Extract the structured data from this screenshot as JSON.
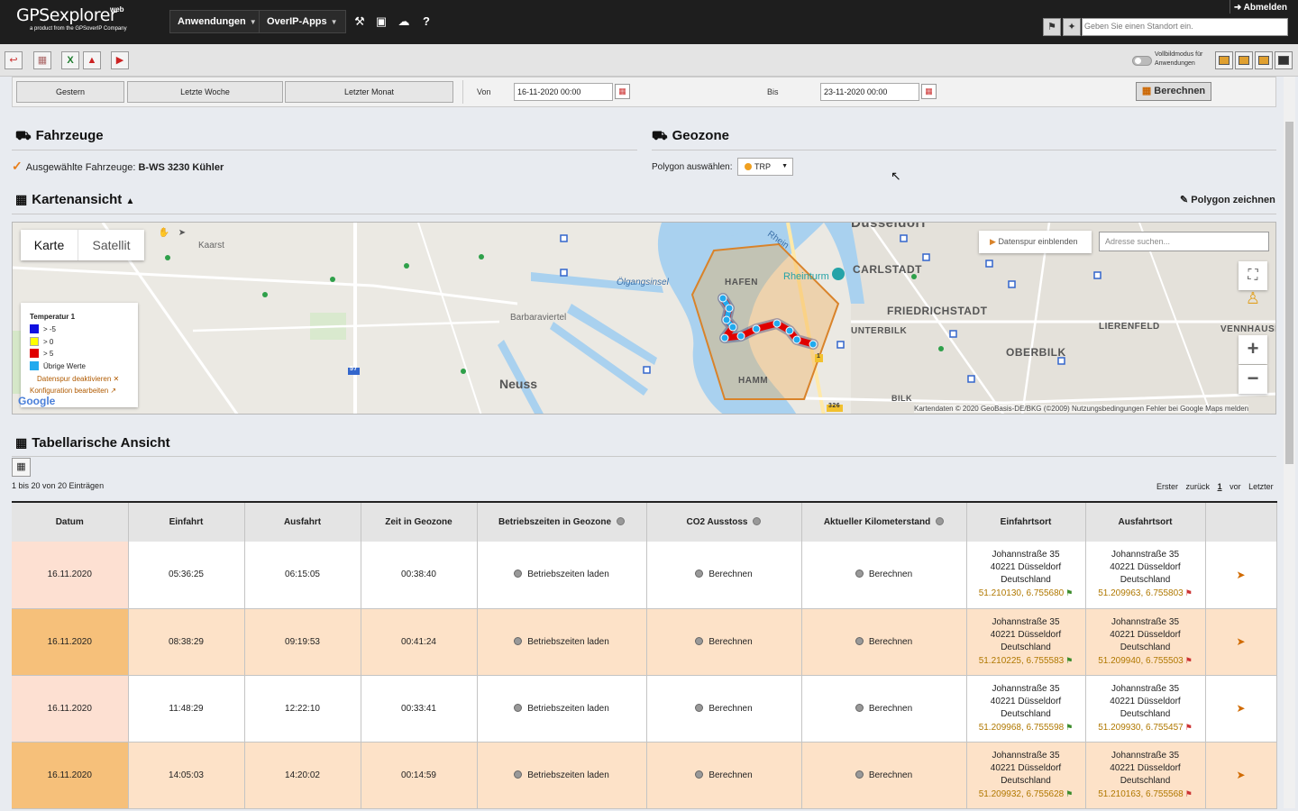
{
  "header": {
    "logo_main": "GPSexplorer",
    "logo_web": "web",
    "logo_sub": "a product from the GPSoverIP Company",
    "nav": [
      {
        "label": "Anwendungen"
      },
      {
        "label": "OverIP-Apps"
      }
    ],
    "logout": "Abmelden",
    "location_placeholder": "Geben Sie einen Standort ein."
  },
  "toolbar": {
    "fullscreen_label_1": "Vollbildmodus für",
    "fullscreen_label_2": "Anwendungen"
  },
  "datebar": {
    "quick": [
      "Gestern",
      "Letzte Woche",
      "Letzter Monat"
    ],
    "from_label": "Von",
    "from_value": "16-11-2020 00:00",
    "to_label": "Bis",
    "to_value": "23-11-2020 00:00",
    "calculate": "Berechnen"
  },
  "vehicles": {
    "title": "Fahrzeuge",
    "selected_label": "Ausgewählte Fahrzeuge:",
    "selected_value": "B-WS 3230 Kühler"
  },
  "geozone": {
    "title": "Geozone",
    "polygon_label": "Polygon auswählen:",
    "polygon_value": "TRP"
  },
  "mapsection": {
    "title": "Kartenansicht",
    "draw_polygon": "Polygon zeichnen",
    "type_map": "Karte",
    "type_sat": "Satellit",
    "track_button": "Datenspur einblenden",
    "address_placeholder": "Adresse suchen...",
    "attribution": "Kartendaten © 2020 GeoBasis-DE/BKG (©2009)    Nutzungsbedingungen    Fehler bei Google Maps melden",
    "google": "Google",
    "legend": {
      "title": "Temperatur 1",
      "items": [
        {
          "label": "> -5",
          "color": "#1010e0"
        },
        {
          "label": "> 0",
          "color": "#ffff00"
        },
        {
          "label": "> 5",
          "color": "#e00000"
        },
        {
          "label": "Übrige Werte",
          "color": "#22aaee"
        }
      ],
      "link_deactivate": "Datenspur deaktivieren",
      "link_config": "Konfiguration bearbeiten"
    },
    "places": {
      "kaarst": "Kaarst",
      "barbaraviertel": "Barbaraviertel",
      "neuss": "Neuss",
      "oelgangsinsel": "Ölgangsinsel",
      "hafen": "HAFEN",
      "hamm": "HAMM",
      "rheinturm": "Rheinturm",
      "carlstadt": "CARLSTADT",
      "friedrichstadt": "FRIEDRICHSTADT",
      "unterbilk": "UNTERBILK",
      "oberbilk": "OBERBILK",
      "lierenfeld": "LIERENFELD",
      "vennhausen": "VENNHAUSE",
      "bilk": "BILK",
      "duesseldorf": "Düsseldorf",
      "rhein": "Rhein",
      "road_57": "57",
      "road_326": "326",
      "road_1": "1"
    }
  },
  "tablesection": {
    "title": "Tabellarische Ansicht",
    "count": "1 bis 20 von 20 Einträgen",
    "pager": {
      "first": "Erster",
      "prev": "zurück",
      "page": "1",
      "next": "vor",
      "last": "Letzter"
    },
    "columns": [
      "Datum",
      "Einfahrt",
      "Ausfahrt",
      "Zeit in Geozone",
      "Betriebszeiten in Geozone",
      "CO2 Ausstoss",
      "Aktueller Kilometerstand",
      "Einfahrtsort",
      "Ausfahrtsort"
    ],
    "btn_ops": "Betriebszeiten laden",
    "btn_calc": "Berechnen",
    "rows": [
      {
        "date": "16.11.2020",
        "in": "05:36:25",
        "out": "06:15:05",
        "dur": "00:38:40",
        "in_addr": [
          "Johannstraße 35",
          "40221 Düsseldorf",
          "Deutschland"
        ],
        "in_coord": "51.210130, 6.755680",
        "out_addr": [
          "Johannstraße 35",
          "40221 Düsseldorf",
          "Deutschland"
        ],
        "out_coord": "51.209963, 6.755803"
      },
      {
        "date": "16.11.2020",
        "in": "08:38:29",
        "out": "09:19:53",
        "dur": "00:41:24",
        "in_addr": [
          "Johannstraße 35",
          "40221 Düsseldorf",
          "Deutschland"
        ],
        "in_coord": "51.210225, 6.755583",
        "out_addr": [
          "Johannstraße 35",
          "40221 Düsseldorf",
          "Deutschland"
        ],
        "out_coord": "51.209940, 6.755503"
      },
      {
        "date": "16.11.2020",
        "in": "11:48:29",
        "out": "12:22:10",
        "dur": "00:33:41",
        "in_addr": [
          "Johannstraße 35",
          "40221 Düsseldorf",
          "Deutschland"
        ],
        "in_coord": "51.209968, 6.755598",
        "out_addr": [
          "Johannstraße 35",
          "40221 Düsseldorf",
          "Deutschland"
        ],
        "out_coord": "51.209930, 6.755457"
      },
      {
        "date": "16.11.2020",
        "in": "14:05:03",
        "out": "14:20:02",
        "dur": "00:14:59",
        "in_addr": [
          "Johannstraße 35",
          "40221 Düsseldorf",
          "Deutschland"
        ],
        "in_coord": "51.209932, 6.755628",
        "out_addr": [
          "Johannstraße 35",
          "40221 Düsseldorf",
          "Deutschland"
        ],
        "out_coord": "51.210163, 6.755568"
      }
    ]
  }
}
